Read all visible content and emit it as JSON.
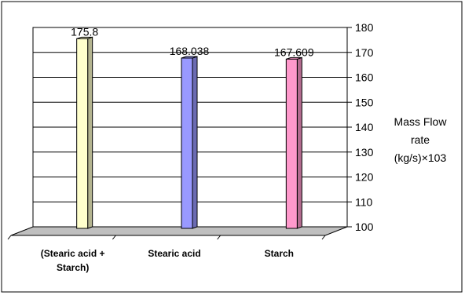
{
  "chart_data": {
    "type": "bar",
    "categories": [
      "(Stearic acid +\nStarch)",
      "Stearic acid",
      "Starch"
    ],
    "values": [
      175.8,
      168.038,
      167.609
    ],
    "value_labels": [
      "175.8",
      "168.038",
      "167.609"
    ],
    "ylabel": "Mass Flow rate (kg/s)×103",
    "ylabel_lines": [
      "Mass Flow",
      "rate",
      "(kg/s)×103"
    ],
    "ylim": [
      100,
      180
    ],
    "yticks": [
      100,
      110,
      120,
      130,
      140,
      150,
      160,
      170,
      180
    ],
    "yaxis_position": "right",
    "grid": true,
    "legend": false,
    "three_d": true,
    "colors": {
      "bars": [
        "#ffffcc",
        "#9999ff",
        "#ff99cc"
      ],
      "bars_side": [
        "#b3b38f",
        "#6b6bb3",
        "#b36b8f"
      ],
      "floor": "#bfbfbf",
      "wall": "#ffffff",
      "grid": "#000000"
    }
  }
}
